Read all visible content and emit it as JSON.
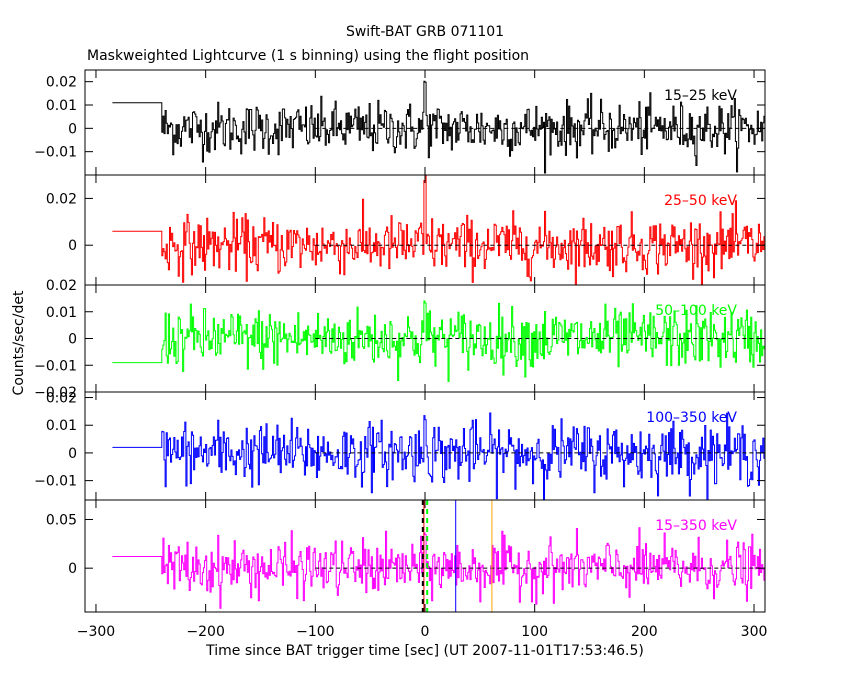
{
  "chart_data": {
    "type": "line",
    "title": "Swift-BAT GRB 071101",
    "subtitle": "Maskweighted Lightcurve (1 s binning) using the flight position",
    "xlabel": "Time since BAT trigger time [sec] (UT 2007-11-01T17:53:46.5)",
    "ylabel": "Counts/sec/det",
    "xlim": [
      -310,
      310
    ],
    "x_ticks": [
      -300,
      -200,
      -100,
      0,
      100,
      200,
      300
    ],
    "x_tick_labels": [
      "−300",
      "−200",
      "−100",
      "0",
      "100",
      "200",
      "300"
    ],
    "pre_data_segment": {
      "x_start": -285,
      "x_end": -240
    },
    "data_x_range": [
      -240,
      310
    ],
    "panels": [
      {
        "name": "15–25 keV",
        "color": "#000000",
        "ylim": [
          -0.02,
          0.025
        ],
        "y_ticks": [
          -0.01,
          0,
          0.01,
          0.02
        ],
        "y_tick_labels": [
          "−0.01",
          "0",
          "0.01",
          "0.02"
        ],
        "pre_level": 0.011,
        "noise_sd": 0.0055,
        "peak": 0.018
      },
      {
        "name": "25–50 keV",
        "color": "#ff0000",
        "ylim": [
          -0.017,
          0.03
        ],
        "y_ticks": [
          0,
          0.02
        ],
        "y_tick_labels": [
          "0",
          "0.02"
        ],
        "pre_level": 0.006,
        "noise_sd": 0.006,
        "peak": 0.025
      },
      {
        "name": "50–100 keV",
        "color": "#00ff00",
        "ylim": [
          -0.02,
          0.02
        ],
        "y_ticks": [
          -0.02,
          -0.01,
          0,
          0.01,
          0.02
        ],
        "y_tick_labels": [
          "−0.02",
          "−0.01",
          "0",
          "0.01",
          "0.02"
        ],
        "pre_level": -0.009,
        "noise_sd": 0.0055,
        "peak": 0.012
      },
      {
        "name": "100–350 keV",
        "color": "#0000ff",
        "ylim": [
          -0.017,
          0.022
        ],
        "y_ticks": [
          -0.01,
          0,
          0.01,
          0.02
        ],
        "y_tick_labels": [
          "−0.01",
          "0",
          "0.01",
          "0.02"
        ],
        "pre_level": 0.002,
        "noise_sd": 0.0055,
        "peak": 0.012
      },
      {
        "name": "15–350 keV",
        "color": "#ff00ff",
        "ylim": [
          -0.045,
          0.07
        ],
        "y_ticks": [
          0,
          0.05
        ],
        "y_tick_labels": [
          "0",
          "0.05"
        ],
        "pre_level": 0.012,
        "noise_sd": 0.014,
        "peak": 0.04
      }
    ],
    "markers": [
      {
        "x": -1,
        "color": "#ff0000",
        "style": "solid"
      },
      {
        "x": 2,
        "color": "#00ff00",
        "style": "dashed"
      },
      {
        "x": -2,
        "color": "#000000",
        "style": "dashed"
      },
      {
        "x": 28,
        "color": "#0000ff",
        "style": "solid"
      },
      {
        "x": 61,
        "color": "#ffa500",
        "style": "solid"
      }
    ],
    "grid": false
  }
}
